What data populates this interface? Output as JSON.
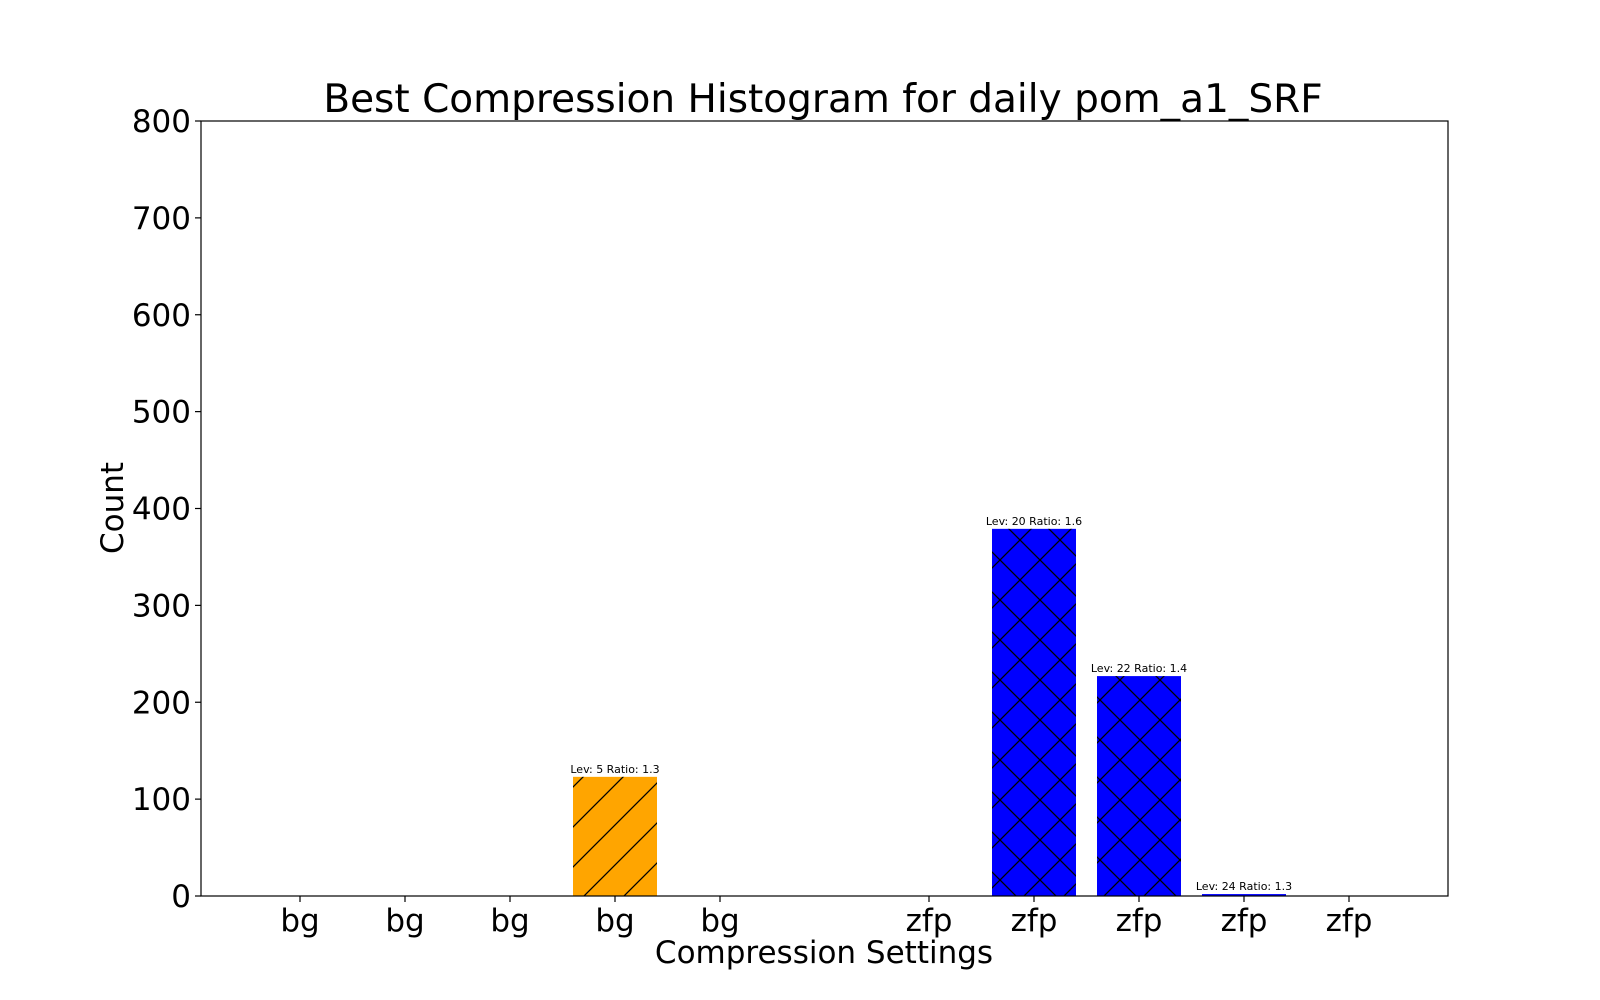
{
  "chart_data": {
    "type": "bar",
    "title": "Best Compression Histogram for daily pom_a1_SRF",
    "xlabel": "Compression Settings",
    "ylabel": "Count",
    "ylim": [
      0,
      800
    ],
    "yticks": [
      "0",
      "100",
      "200",
      "300",
      "400",
      "500",
      "600",
      "700",
      "800"
    ],
    "grid": false,
    "categories": [
      "bg",
      "bg",
      "bg",
      "bg",
      "bg",
      "zfp",
      "zfp",
      "zfp",
      "zfp",
      "zfp"
    ],
    "values": [
      0,
      0,
      0,
      123,
      0,
      0,
      379,
      227,
      2,
      0
    ],
    "bar_labels": [
      "",
      "",
      "",
      "Lev: 5 Ratio: 1.3",
      "",
      "",
      "Lev: 20 Ratio: 1.6",
      "Lev: 22 Ratio: 1.4",
      "Lev: 24 Ratio: 1.3",
      ""
    ],
    "colors": {
      "bg": "#ffa500",
      "zfp": "#0000ff",
      "hatch": "#000000",
      "axes": "#000000"
    }
  }
}
